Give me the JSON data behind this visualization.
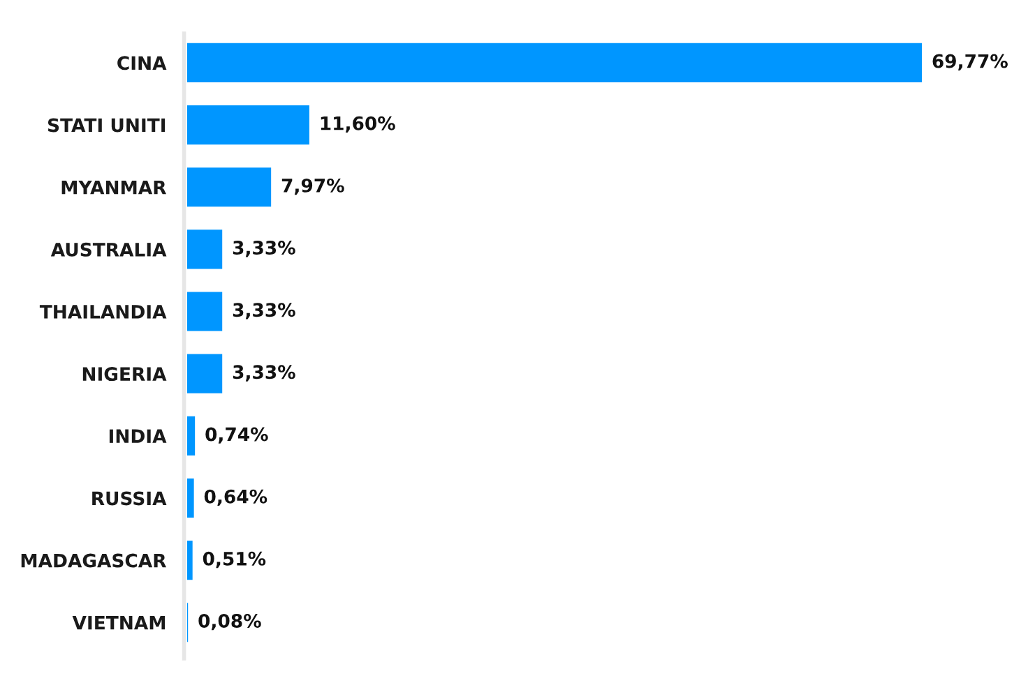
{
  "chart_data": {
    "type": "bar",
    "orientation": "horizontal",
    "tick_labels": "y",
    "categories": [
      "CINA",
      "STATI UNITI",
      "MYANMAR",
      "AUSTRALIA",
      "THAILANDIA",
      "NIGERIA",
      "INDIA",
      "RUSSIA",
      "MADAGASCAR",
      "VIETNAM"
    ],
    "values": [
      69.77,
      11.6,
      7.97,
      3.33,
      3.33,
      3.33,
      0.74,
      0.64,
      0.51,
      0.08
    ],
    "value_labels": [
      "69,77%",
      "11,60%",
      "7,97%",
      "3,33%",
      "3,33%",
      "3,33%",
      "0,74%",
      "0,64%",
      "0,51%",
      "0,08%"
    ],
    "color": "#0096ff"
  }
}
